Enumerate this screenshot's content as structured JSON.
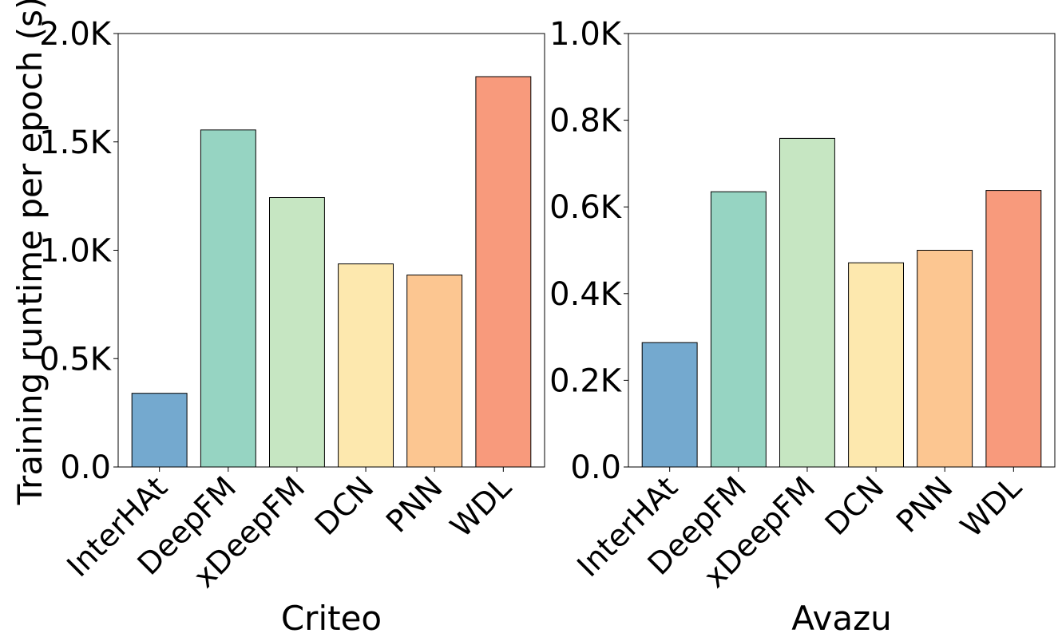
{
  "chart_data": [
    {
      "type": "bar",
      "xlabel": "Criteo",
      "ylabel": "Training runtime per epoch (s)",
      "categories": [
        "InterHAt",
        "DeepFM",
        "xDeepFM",
        "DCN",
        "PNN",
        "WDL"
      ],
      "values": [
        340,
        1555,
        1243,
        937,
        886,
        1801
      ],
      "ylim": [
        0,
        2000
      ],
      "yticks": [
        0,
        500,
        1000,
        1500,
        2000
      ],
      "ytick_labels": [
        "0.0",
        "0.5K",
        "1.0K",
        "1.5K",
        "2.0K"
      ],
      "colors": [
        "#74a9cf",
        "#96d4c2",
        "#c6e6c2",
        "#fde8ae",
        "#fcc691",
        "#f89a7c"
      ],
      "grid": false,
      "legend": "none"
    },
    {
      "type": "bar",
      "xlabel": "Avazu",
      "ylabel": "",
      "categories": [
        "InterHAt",
        "DeepFM",
        "xDeepFM",
        "DCN",
        "PNN",
        "WDL"
      ],
      "values": [
        287,
        635,
        758,
        471,
        500,
        638
      ],
      "ylim": [
        0,
        1000
      ],
      "yticks": [
        0,
        200,
        400,
        600,
        800,
        1000
      ],
      "ytick_labels": [
        "0.0",
        "0.2K",
        "0.4K",
        "0.6K",
        "0.8K",
        "1.0K"
      ],
      "colors": [
        "#74a9cf",
        "#96d4c2",
        "#c6e6c2",
        "#fde8ae",
        "#fcc691",
        "#f89a7c"
      ],
      "grid": false,
      "legend": "none"
    }
  ]
}
